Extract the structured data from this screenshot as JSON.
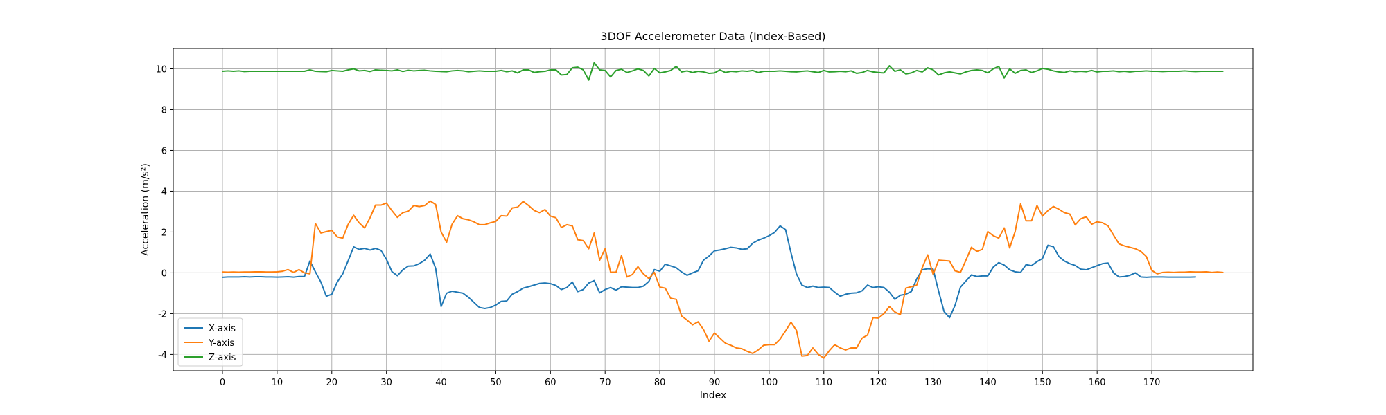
{
  "chart_data": {
    "type": "line",
    "title": "3DOF Accelerometer Data (Index-Based)",
    "xlabel": "Index",
    "ylabel": "Acceleration (m/s²)",
    "xlim": [
      -9,
      188.5
    ],
    "ylim": [
      -4.8,
      11.0
    ],
    "xticks": [
      0,
      10,
      20,
      30,
      40,
      50,
      60,
      70,
      80,
      90,
      100,
      110,
      120,
      130,
      140,
      150,
      160,
      170
    ],
    "yticks": [
      -4,
      -2,
      0,
      2,
      4,
      6,
      8,
      10
    ],
    "grid": true,
    "legend_position": "lower-left",
    "series": [
      {
        "name": "X-axis",
        "color": "#1f77b4",
        "values": [
          -0.22,
          -0.2,
          -0.2,
          -0.2,
          -0.19,
          -0.2,
          -0.19,
          -0.19,
          -0.2,
          -0.2,
          -0.21,
          -0.2,
          -0.19,
          -0.21,
          -0.18,
          -0.18,
          0.58,
          0.05,
          -0.45,
          -1.15,
          -1.05,
          -0.45,
          -0.05,
          0.6,
          1.27,
          1.15,
          1.2,
          1.12,
          1.2,
          1.1,
          0.66,
          0.06,
          -0.14,
          0.15,
          0.33,
          0.34,
          0.45,
          0.62,
          0.92,
          0.22,
          -1.65,
          -1.0,
          -0.9,
          -0.95,
          -1.0,
          -1.2,
          -1.45,
          -1.7,
          -1.75,
          -1.7,
          -1.58,
          -1.4,
          -1.38,
          -1.05,
          -0.92,
          -0.75,
          -0.68,
          -0.6,
          -0.52,
          -0.5,
          -0.53,
          -0.62,
          -0.82,
          -0.72,
          -0.45,
          -0.92,
          -0.82,
          -0.5,
          -0.38,
          -0.98,
          -0.82,
          -0.72,
          -0.85,
          -0.68,
          -0.7,
          -0.72,
          -0.72,
          -0.65,
          -0.42,
          0.16,
          0.08,
          0.42,
          0.34,
          0.25,
          0.04,
          -0.12,
          0.0,
          0.1,
          0.62,
          0.82,
          1.08,
          1.12,
          1.18,
          1.25,
          1.22,
          1.15,
          1.18,
          1.45,
          1.6,
          1.7,
          1.82,
          1.98,
          2.3,
          2.12,
          0.98,
          -0.05,
          -0.6,
          -0.72,
          -0.65,
          -0.72,
          -0.7,
          -0.72,
          -0.95,
          -1.15,
          -1.05,
          -1.0,
          -0.98,
          -0.88,
          -0.6,
          -0.72,
          -0.68,
          -0.72,
          -0.95,
          -1.3,
          -1.1,
          -1.05,
          -0.92,
          -0.3,
          0.15,
          0.2,
          0.18,
          -0.9,
          -1.9,
          -2.2,
          -1.6,
          -0.7,
          -0.4,
          -0.1,
          -0.18,
          -0.15,
          -0.15,
          0.28,
          0.5,
          0.38,
          0.15,
          0.05,
          0.02,
          0.4,
          0.35,
          0.55,
          0.7,
          1.35,
          1.28,
          0.8,
          0.58,
          0.45,
          0.36,
          0.18,
          0.15,
          0.25,
          0.35,
          0.45,
          0.48,
          0.0,
          -0.2,
          -0.18,
          -0.12,
          0.0,
          -0.2,
          -0.22,
          -0.2,
          -0.2,
          -0.2,
          -0.21,
          -0.21,
          -0.21,
          -0.21,
          -0.21,
          -0.2
        ]
      },
      {
        "name": "Y-axis",
        "color": "#ff7f0e",
        "values": [
          0.04,
          0.03,
          0.04,
          0.03,
          0.04,
          0.04,
          0.05,
          0.05,
          0.04,
          0.04,
          0.05,
          0.08,
          0.16,
          0.02,
          0.16,
          0.0,
          -0.05,
          2.42,
          1.95,
          2.02,
          2.08,
          1.76,
          1.7,
          2.38,
          2.82,
          2.45,
          2.2,
          2.7,
          3.32,
          3.32,
          3.42,
          3.05,
          2.72,
          2.95,
          3.02,
          3.3,
          3.25,
          3.3,
          3.52,
          3.35,
          2.0,
          1.5,
          2.38,
          2.8,
          2.65,
          2.6,
          2.5,
          2.36,
          2.36,
          2.45,
          2.52,
          2.8,
          2.78,
          3.18,
          3.22,
          3.5,
          3.3,
          3.06,
          2.95,
          3.1,
          2.78,
          2.7,
          2.22,
          2.36,
          2.3,
          1.62,
          1.58,
          1.18,
          1.95,
          0.62,
          1.18,
          0.03,
          0.03,
          0.85,
          -0.2,
          -0.08,
          0.3,
          -0.05,
          -0.28,
          0.02,
          -0.7,
          -0.75,
          -1.25,
          -1.3,
          -2.12,
          -2.32,
          -2.55,
          -2.4,
          -2.78,
          -3.35,
          -2.95,
          -3.2,
          -3.45,
          -3.55,
          -3.68,
          -3.72,
          -3.85,
          -3.95,
          -3.78,
          -3.55,
          -3.52,
          -3.52,
          -3.25,
          -2.85,
          -2.42,
          -2.82,
          -4.08,
          -4.05,
          -3.68,
          -4.0,
          -4.18,
          -3.82,
          -3.52,
          -3.68,
          -3.78,
          -3.68,
          -3.68,
          -3.2,
          -3.05,
          -2.2,
          -2.22,
          -2.0,
          -1.65,
          -1.92,
          -2.05,
          -0.75,
          -0.68,
          -0.6,
          0.25,
          0.88,
          -0.08,
          0.62,
          0.6,
          0.58,
          0.1,
          0.02,
          0.62,
          1.25,
          1.05,
          1.15,
          2.02,
          1.82,
          1.7,
          2.2,
          1.22,
          2.02,
          3.38,
          2.55,
          2.55,
          3.3,
          2.78,
          3.05,
          3.25,
          3.12,
          2.95,
          2.88,
          2.35,
          2.65,
          2.75,
          2.38,
          2.5,
          2.45,
          2.3,
          1.85,
          1.42,
          1.32,
          1.25,
          1.18,
          1.05,
          0.8,
          0.12,
          -0.05,
          0.02,
          0.03,
          0.02,
          0.03,
          0.03,
          0.05,
          0.04,
          0.04,
          0.05,
          0.02,
          0.04,
          0.02
        ]
      },
      {
        "name": "Z-axis",
        "color": "#2ca02c",
        "values": [
          9.88,
          9.9,
          9.88,
          9.9,
          9.87,
          9.88,
          9.88,
          9.88,
          9.88,
          9.88,
          9.88,
          9.88,
          9.88,
          9.88,
          9.88,
          9.88,
          9.95,
          9.88,
          9.87,
          9.86,
          9.92,
          9.9,
          9.88,
          9.95,
          10.0,
          9.9,
          9.92,
          9.87,
          9.95,
          9.93,
          9.92,
          9.9,
          9.95,
          9.87,
          9.93,
          9.9,
          9.92,
          9.93,
          9.9,
          9.88,
          9.87,
          9.86,
          9.9,
          9.92,
          9.9,
          9.86,
          9.88,
          9.9,
          9.88,
          9.88,
          9.88,
          9.92,
          9.86,
          9.9,
          9.8,
          9.95,
          9.95,
          9.82,
          9.86,
          9.88,
          9.95,
          9.95,
          9.7,
          9.72,
          10.05,
          10.08,
          9.95,
          9.45,
          10.3,
          9.95,
          9.92,
          9.6,
          9.92,
          9.98,
          9.82,
          9.9,
          10.0,
          9.92,
          9.65,
          10.02,
          9.8,
          9.85,
          9.92,
          10.12,
          9.85,
          9.9,
          9.82,
          9.88,
          9.85,
          9.78,
          9.8,
          9.95,
          9.82,
          9.88,
          9.86,
          9.9,
          9.88,
          9.92,
          9.82,
          9.88,
          9.88,
          9.88,
          9.9,
          9.88,
          9.86,
          9.85,
          9.88,
          9.9,
          9.86,
          9.82,
          9.92,
          9.85,
          9.86,
          9.88,
          9.86,
          9.9,
          9.78,
          9.82,
          9.92,
          9.85,
          9.82,
          9.8,
          10.15,
          9.88,
          9.95,
          9.75,
          9.8,
          9.92,
          9.85,
          10.05,
          9.95,
          9.7,
          9.8,
          9.85,
          9.8,
          9.75,
          9.85,
          9.92,
          9.95,
          9.92,
          9.8,
          10.0,
          10.12,
          9.55,
          10.0,
          9.78,
          9.92,
          9.95,
          9.82,
          9.9,
          10.02,
          9.98,
          9.9,
          9.85,
          9.82,
          9.9,
          9.86,
          9.88,
          9.86,
          9.92,
          9.85,
          9.88,
          9.88,
          9.9,
          9.86,
          9.88,
          9.85,
          9.88,
          9.88,
          9.9,
          9.88,
          9.88,
          9.87,
          9.88,
          9.88,
          9.88,
          9.9,
          9.88,
          9.87,
          9.88,
          9.88,
          9.88,
          9.88,
          9.88
        ]
      }
    ]
  }
}
